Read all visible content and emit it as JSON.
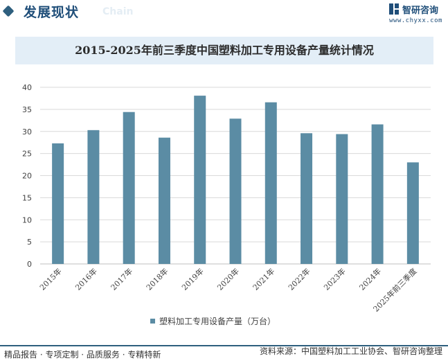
{
  "header": {
    "title": "发展现状",
    "subtitle": "Chain",
    "brand": "智研咨询",
    "url": "www.chyxx.com"
  },
  "footer": {
    "services": "精品报告 · 专项定制 · 品质服务 · 专精特新",
    "source": "资料来源：中国塑料加工工业协会、智研咨询整理"
  },
  "colors": {
    "bar": "#5b8ca4",
    "accent": "#1f4e79",
    "band": "#e3eef7",
    "grid": "#d9d9d9"
  },
  "chart_data": {
    "type": "bar",
    "title": "2015-2025年前三季度中国塑料加工专用设备产量统计情况",
    "categories": [
      "2015年",
      "2016年",
      "2017年",
      "2018年",
      "2019年",
      "2020年",
      "2021年",
      "2022年",
      "2023年",
      "2024年",
      "2025年前三季度"
    ],
    "series": [
      {
        "name": "塑料加工专用设备产量（万台）",
        "values": [
          27.3,
          30.3,
          34.4,
          28.6,
          38.1,
          32.9,
          36.6,
          29.6,
          29.4,
          31.6,
          23.0
        ]
      }
    ],
    "yticks": [
      "0",
      "5",
      "10",
      "15",
      "20",
      "25",
      "30",
      "35",
      "40"
    ],
    "ylim": [
      0,
      40
    ],
    "xlabel": "",
    "ylabel": "",
    "grid": true,
    "legend_position": "bottom"
  }
}
